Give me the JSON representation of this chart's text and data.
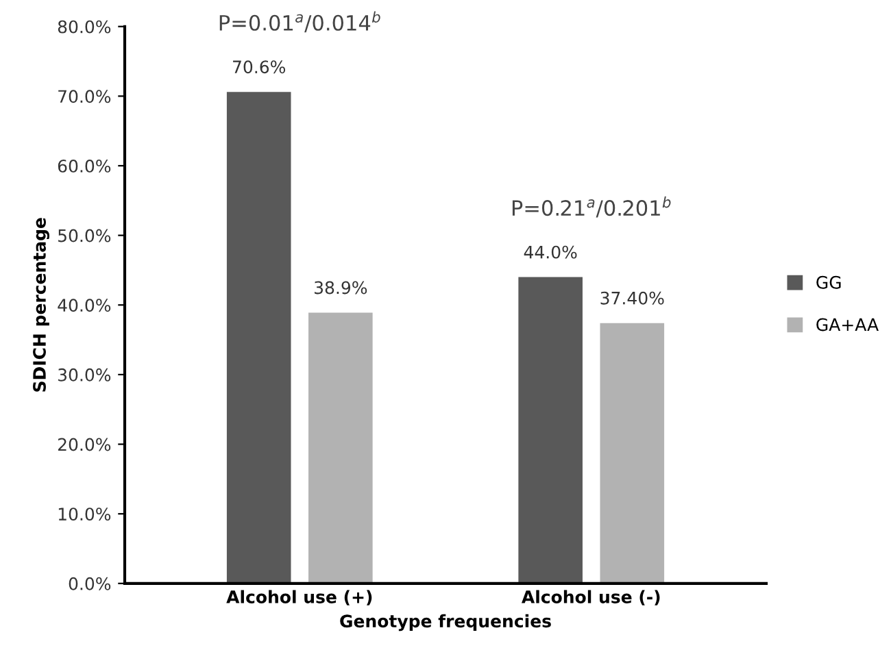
{
  "chart_data": {
    "type": "bar",
    "xlabel": "Genotype frequencies",
    "ylabel": "SDICH percentage",
    "categories": [
      "Alcohol use (+)",
      "Alcohol use (-)"
    ],
    "series": [
      {
        "name": "GG",
        "color": "#595959",
        "values": [
          70.6,
          44.0
        ],
        "value_labels": [
          "70.6%",
          "44.0%"
        ]
      },
      {
        "name": "GA+AA",
        "color": "#b2b2b2",
        "values": [
          38.9,
          37.4
        ],
        "value_labels": [
          "38.9%",
          "37.40%"
        ]
      }
    ],
    "ylim": [
      0,
      80
    ],
    "yticks": [
      {
        "value": 0,
        "label": "0.0%"
      },
      {
        "value": 10,
        "label": "10.0%"
      },
      {
        "value": 20,
        "label": "20.0%"
      },
      {
        "value": 30,
        "label": "30.0%"
      },
      {
        "value": 40,
        "label": "40.0%"
      },
      {
        "value": 50,
        "label": "50.0%"
      },
      {
        "value": 60,
        "label": "60.0%"
      },
      {
        "value": 70,
        "label": "70.0%"
      },
      {
        "value": 80,
        "label": "80.0%"
      }
    ],
    "annotations": [
      "P=0.01$^{a}$/0.014$^{b}$",
      "P=0.21$^{a}$/0.201$^{b}$"
    ],
    "grid": false,
    "legend": "right"
  }
}
